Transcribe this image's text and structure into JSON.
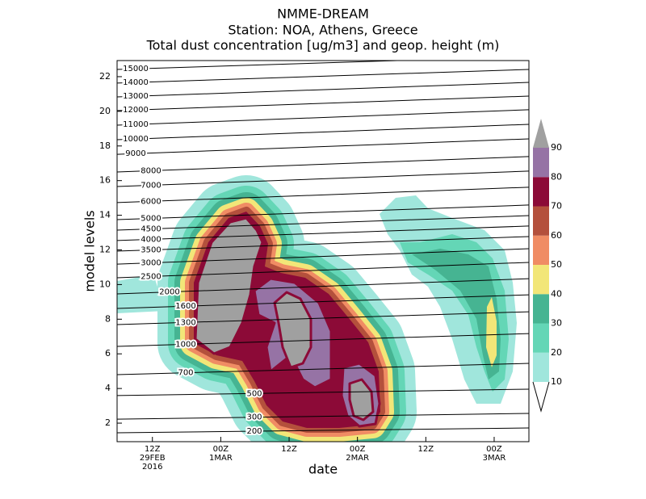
{
  "chart_data": {
    "type": "contour",
    "title": "NMME-DREAM",
    "subtitle": "Station: NOA, Athens, Greece",
    "description": "Total dust concentration [ug/m3] and geop. height (m)",
    "xlabel": "date",
    "ylabel": "model levels",
    "xlim": [
      -6.2,
      66.1
    ],
    "xticks": [
      {
        "value": 0,
        "label": "12Z\n29FEB\n2016"
      },
      {
        "value": 12,
        "label": "00Z\n1MAR"
      },
      {
        "value": 24,
        "label": "12Z"
      },
      {
        "value": 36,
        "label": "00Z\n2MAR"
      },
      {
        "value": 48,
        "label": "12Z"
      },
      {
        "value": 60,
        "label": "00Z\n3MAR"
      }
    ],
    "ylim": [
      0.93,
      22.93
    ],
    "yticks": [
      2,
      4,
      6,
      8,
      10,
      12,
      14,
      16,
      18,
      20,
      22
    ],
    "colorbar": {
      "levels": [
        10,
        20,
        30,
        40,
        50,
        60,
        70,
        80,
        90
      ],
      "colors": [
        "#a0e6dc",
        "#64d6b6",
        "#46b492",
        "#f2e678",
        "#f08c64",
        "#b4503c",
        "#8c0a37",
        "#9673a5",
        "#a0a0a0"
      ]
    },
    "contours": {
      "levels": [
        15000,
        14000,
        13000,
        12000,
        11000,
        10000,
        9000,
        8000,
        7000,
        6000,
        5000,
        4500,
        4000,
        3500,
        3000,
        2500,
        2000,
        1600,
        1300,
        1000,
        700,
        500,
        300,
        200
      ],
      "start": [
        22.42,
        21.63,
        20.83,
        20.04,
        19.2,
        18.36,
        17.52,
        16.5,
        15.66,
        14.73,
        13.75,
        13.14,
        12.54,
        11.93,
        11.18,
        10.39,
        9.46,
        8.62,
        7.69,
        6.43,
        4.8,
        3.59,
        2.23,
        1.44
      ],
      "end": [
        23.17,
        22.42,
        21.67,
        20.88,
        20.09,
        19.25,
        18.41,
        17.39,
        16.55,
        15.62,
        14.59,
        13.98,
        13.38,
        12.77,
        12.07,
        11.28,
        10.34,
        9.41,
        8.43,
        7.17,
        5.45,
        3.96,
        2.56,
        1.72
      ]
    }
  }
}
